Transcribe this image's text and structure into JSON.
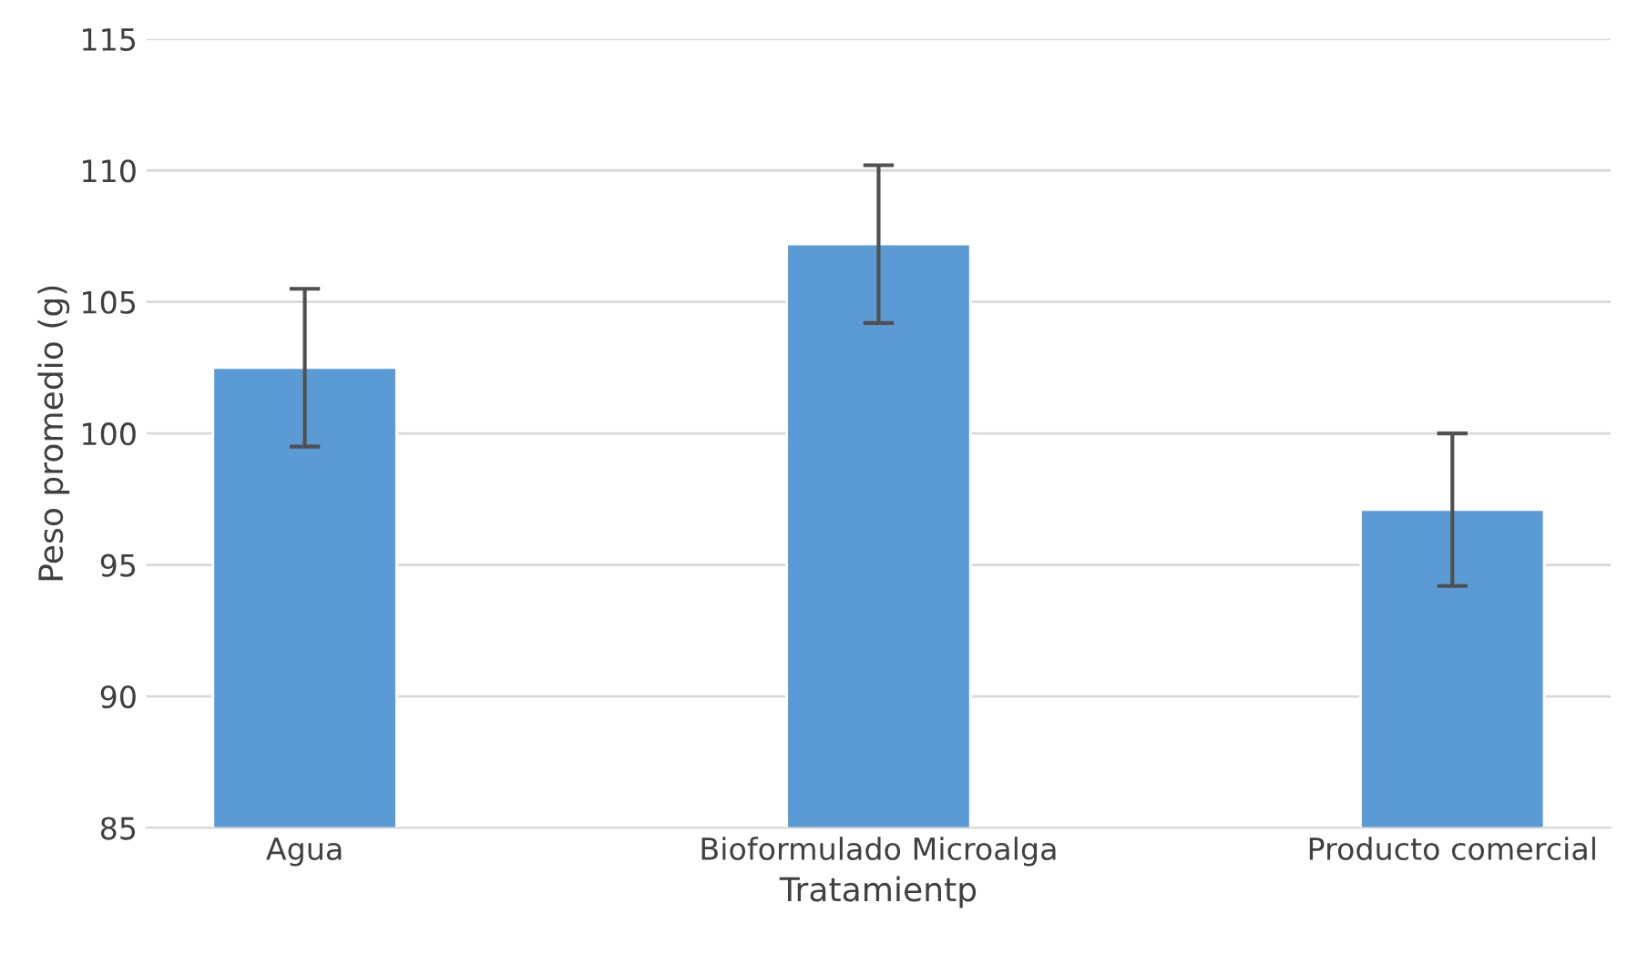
{
  "chart_data": {
    "type": "bar",
    "xlabel": "Tratamientp",
    "ylabel": "Peso promedio (g)",
    "categories": [
      "Agua",
      "Bioformulado Microalga",
      "Producto comercial"
    ],
    "values": [
      102.5,
      107.2,
      97.1
    ],
    "errors": [
      3,
      3,
      2.9
    ],
    "color": "#5b9bd5",
    "ylim": [
      85,
      115
    ],
    "yticks": [
      85,
      90,
      95,
      100,
      105,
      110,
      115
    ],
    "grid": "y"
  }
}
